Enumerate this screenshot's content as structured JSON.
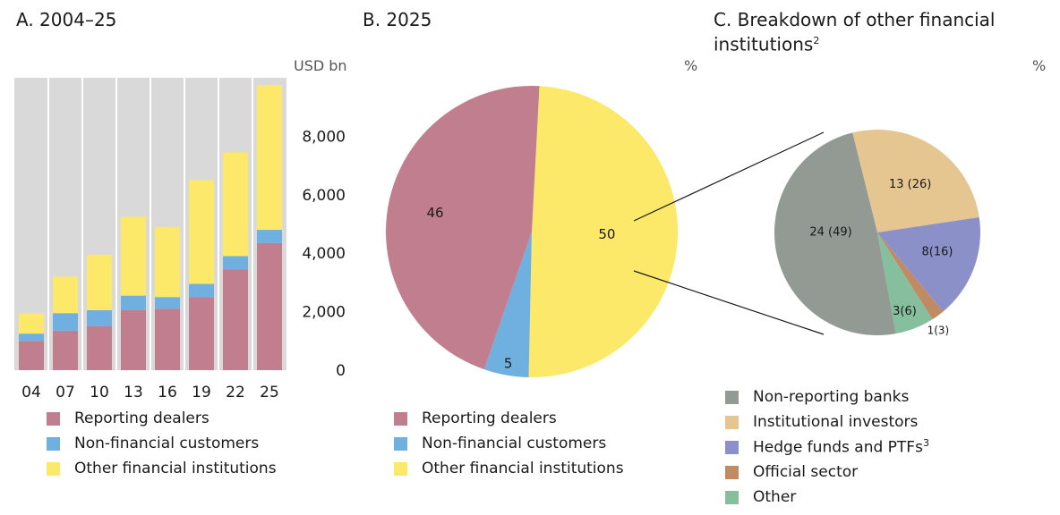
{
  "panels": {
    "a": {
      "title": "A. 2004–25",
      "unit": "USD bn"
    },
    "b": {
      "title": "B. 2025",
      "unit": "%"
    },
    "c": {
      "title_line1": "C. Breakdown of other financial",
      "title_line2": "institutions",
      "title_sup": "2",
      "unit": "%"
    }
  },
  "colors": {
    "reporting_dealers": "#c17e8e",
    "non_financial": "#6fb0e0",
    "other_financial": "#fce96a",
    "non_reporting_banks": "#939a93",
    "institutional_investors": "#e5c590",
    "hedge_funds": "#8b90c9",
    "official_sector": "#c08a62",
    "other": "#85bf9e",
    "plot_bg": "#d9d9d9"
  },
  "chart_data": [
    {
      "type": "bar",
      "stacked": true,
      "categories": [
        "04",
        "07",
        "10",
        "13",
        "16",
        "19",
        "22",
        "25"
      ],
      "series": [
        {
          "name": "Reporting dealers",
          "values": [
            1000,
            1350,
            1500,
            2050,
            2100,
            2500,
            3450,
            4350
          ]
        },
        {
          "name": "Non-financial customers",
          "values": [
            250,
            600,
            550,
            500,
            400,
            450,
            450,
            450
          ]
        },
        {
          "name": "Other financial institutions",
          "values": [
            700,
            1250,
            1900,
            2700,
            2400,
            3550,
            3550,
            4950
          ]
        }
      ],
      "yticks": [
        "0",
        "2,000",
        "4,000",
        "6,000",
        "8,000"
      ],
      "ytick_values": [
        0,
        2000,
        4000,
        6000,
        8000
      ],
      "ylim": [
        0,
        10000
      ],
      "grid": true,
      "legend": [
        "Reporting dealers",
        "Non-financial customers",
        "Other financial institutions"
      ]
    },
    {
      "type": "pie",
      "slices": [
        {
          "name": "Reporting dealers",
          "value": 46,
          "label": "46"
        },
        {
          "name": "Non-financial customers",
          "value": 5,
          "label": "5"
        },
        {
          "name": "Other financial institutions",
          "value": 50,
          "label": "50"
        }
      ],
      "legend": [
        "Reporting dealers",
        "Non-financial customers",
        "Other financial institutions"
      ]
    },
    {
      "type": "pie",
      "slices": [
        {
          "name": "Institutional investors",
          "value": 13,
          "label": "13 (26)"
        },
        {
          "name": "Hedge funds and PTFs",
          "value": 8,
          "label": "8(16)"
        },
        {
          "name": "Official sector",
          "value": 1,
          "label": "1(3)"
        },
        {
          "name": "Other",
          "value": 3,
          "label": "3(6)"
        },
        {
          "name": "Non-reporting banks",
          "value": 24,
          "label": "24 (49)"
        }
      ],
      "legend": [
        {
          "label": "Non-reporting banks"
        },
        {
          "label": "Institutional investors"
        },
        {
          "label": "Hedge funds and PTFs",
          "sup": "3"
        },
        {
          "label": "Official sector"
        },
        {
          "label": "Other"
        }
      ]
    }
  ]
}
